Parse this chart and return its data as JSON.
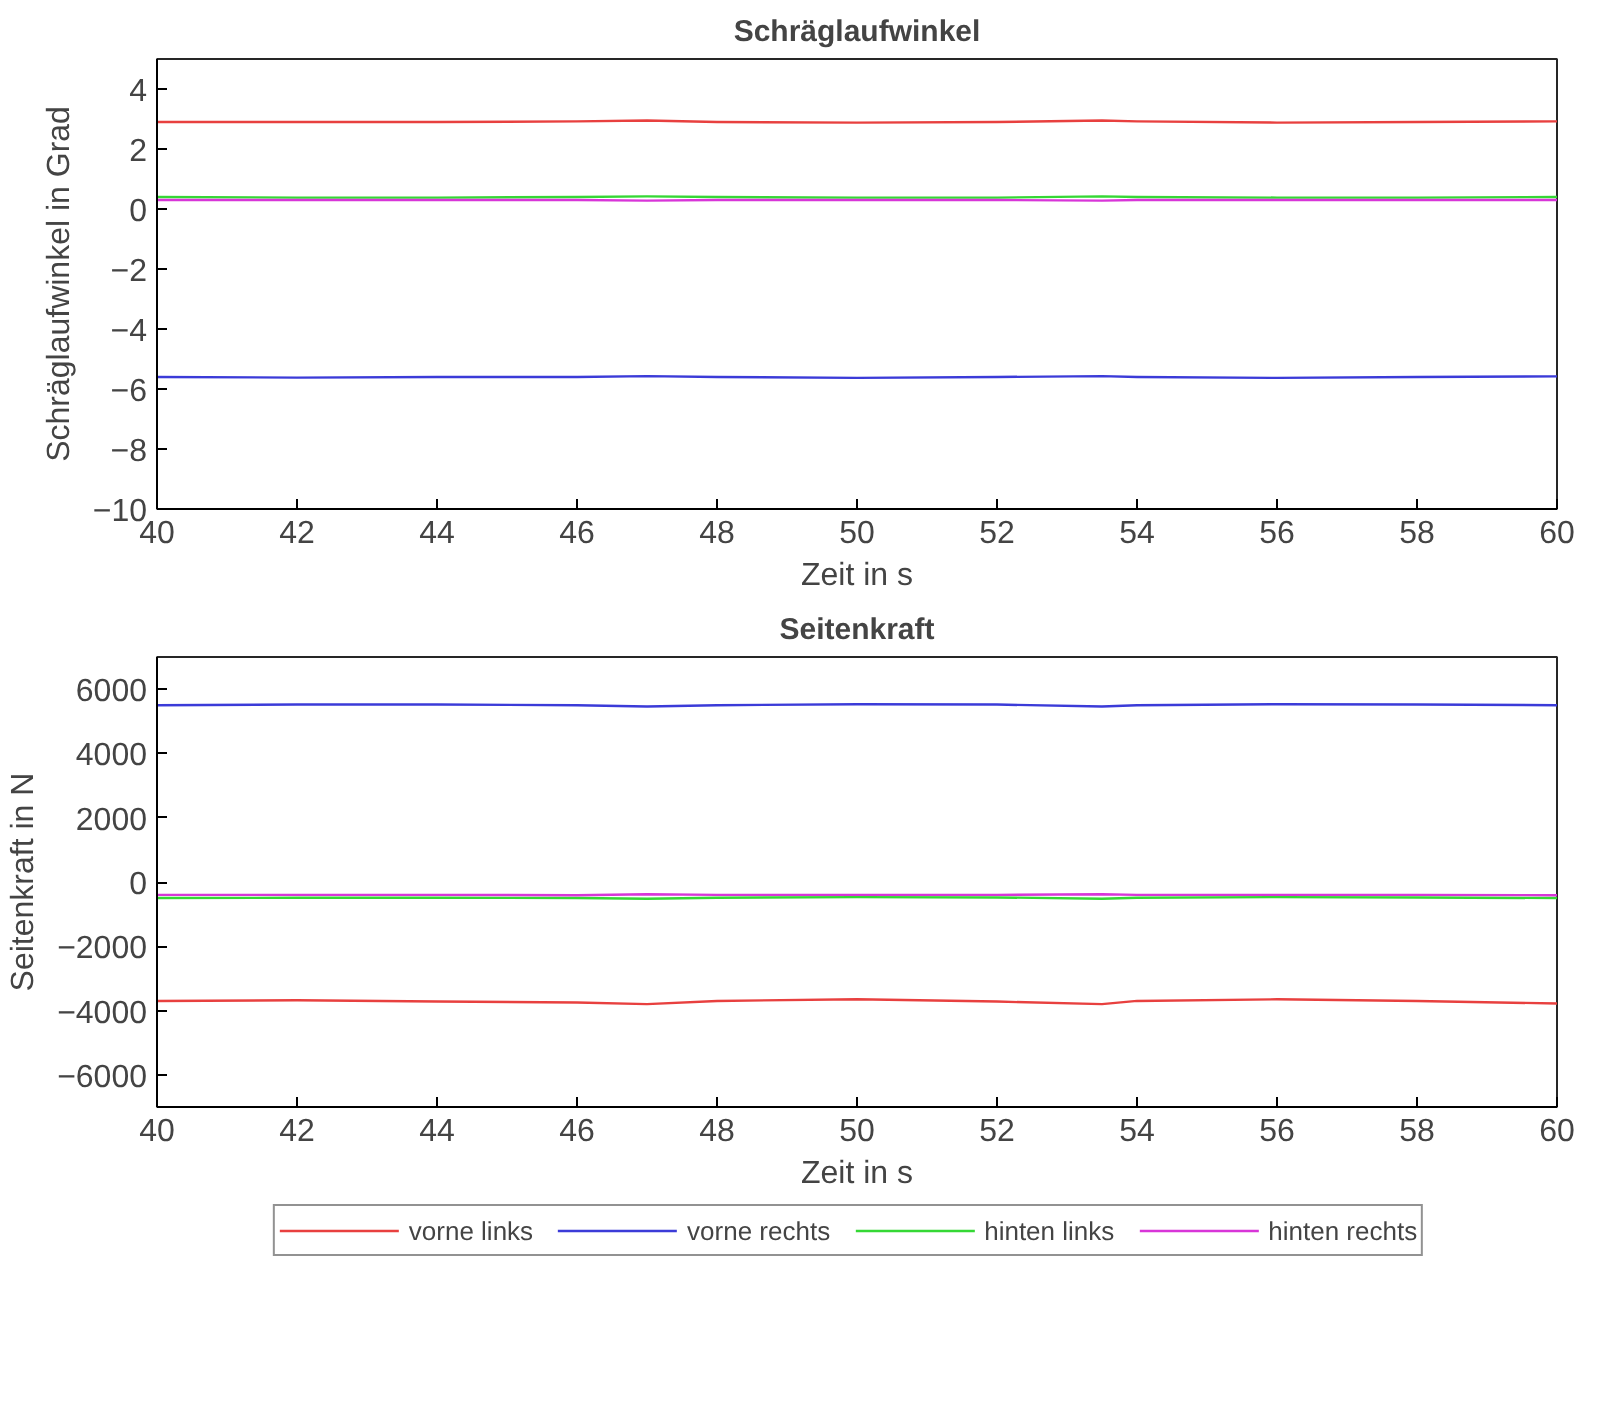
{
  "chart_data": [
    {
      "type": "line",
      "title": "Schräglaufwinkel",
      "xlabel": "Zeit in s",
      "ylabel": "Schräglaufwinkel in Grad",
      "x": [
        40,
        42,
        44,
        46,
        47,
        48,
        50,
        52,
        53.5,
        54,
        56,
        58,
        60
      ],
      "xlim": [
        40,
        60
      ],
      "xticks": [
        40,
        42,
        44,
        46,
        48,
        50,
        52,
        54,
        56,
        58,
        60
      ],
      "ylim": [
        -10,
        5
      ],
      "yticks": [
        -10,
        -8,
        -6,
        -4,
        -2,
        0,
        2,
        4
      ],
      "grid": false,
      "series": [
        {
          "color": "#e8403f",
          "values": [
            2.9,
            2.9,
            2.9,
            2.92,
            2.95,
            2.9,
            2.88,
            2.9,
            2.95,
            2.92,
            2.88,
            2.9,
            2.92
          ]
        },
        {
          "color": "#3b3bd8",
          "values": [
            -5.6,
            -5.62,
            -5.6,
            -5.6,
            -5.57,
            -5.6,
            -5.63,
            -5.6,
            -5.57,
            -5.6,
            -5.63,
            -5.6,
            -5.58
          ]
        },
        {
          "color": "#35d835",
          "values": [
            0.4,
            0.38,
            0.38,
            0.4,
            0.42,
            0.4,
            0.38,
            0.38,
            0.42,
            0.4,
            0.38,
            0.38,
            0.4
          ]
        },
        {
          "color": "#d835d8",
          "values": [
            0.3,
            0.3,
            0.3,
            0.3,
            0.28,
            0.3,
            0.3,
            0.3,
            0.28,
            0.3,
            0.3,
            0.3,
            0.3
          ]
        }
      ]
    },
    {
      "type": "line",
      "title": "Seitenkraft",
      "xlabel": "Zeit in s",
      "ylabel": "Seitenkraft in N",
      "x": [
        40,
        42,
        44,
        46,
        47,
        48,
        50,
        52,
        53.5,
        54,
        56,
        58,
        60
      ],
      "xlim": [
        40,
        60
      ],
      "xticks": [
        40,
        42,
        44,
        46,
        48,
        50,
        52,
        54,
        56,
        58,
        60
      ],
      "ylim": [
        -7000,
        7000
      ],
      "yticks": [
        -6000,
        -4000,
        -2000,
        0,
        2000,
        4000,
        6000
      ],
      "grid": false,
      "legend": "bottom",
      "series": [
        {
          "name": "vorne links",
          "color": "#e8403f",
          "values": [
            -3700,
            -3680,
            -3720,
            -3750,
            -3800,
            -3700,
            -3650,
            -3720,
            -3800,
            -3700,
            -3650,
            -3700,
            -3780
          ]
        },
        {
          "name": "vorne rechts",
          "color": "#3b3bd8",
          "values": [
            5500,
            5520,
            5520,
            5500,
            5460,
            5500,
            5530,
            5520,
            5460,
            5500,
            5530,
            5520,
            5500
          ]
        },
        {
          "name": "hinten links",
          "color": "#35d835",
          "values": [
            -500,
            -490,
            -490,
            -500,
            -520,
            -490,
            -470,
            -480,
            -520,
            -490,
            -470,
            -480,
            -500
          ]
        },
        {
          "name": "hinten rechts",
          "color": "#d835d8",
          "values": [
            -400,
            -400,
            -400,
            -410,
            -380,
            -400,
            -400,
            -400,
            -380,
            -400,
            -400,
            -400,
            -410
          ]
        }
      ]
    }
  ]
}
